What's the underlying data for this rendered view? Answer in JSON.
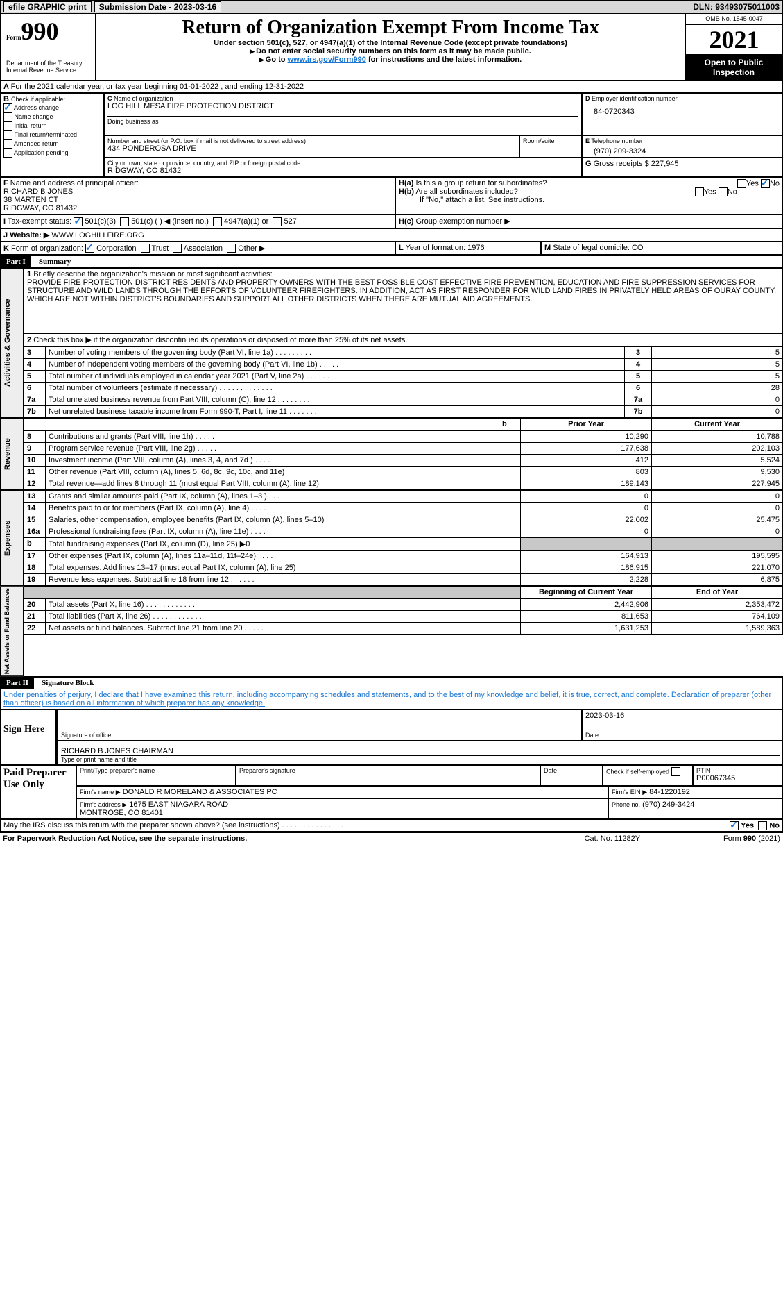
{
  "topbar": {
    "efile": "efile GRAPHIC print",
    "submission_label": "Submission Date - ",
    "submission_date": "2023-03-16",
    "dln_label": "DLN: ",
    "dln": "93493075011003"
  },
  "header": {
    "form_label": "Form",
    "form_num": "990",
    "title": "Return of Organization Exempt From Income Tax",
    "subtitle": "Under section 501(c), 527, or 4947(a)(1) of the Internal Revenue Code (except private foundations)",
    "note1": "Do not enter social security numbers on this form as it may be made public.",
    "note2_pre": "Go to ",
    "note2_link": "www.irs.gov/Form990",
    "note2_post": " for instructions and the latest information.",
    "dept": "Department of the Treasury\nInternal Revenue Service",
    "omb": "OMB No. 1545-0047",
    "year": "2021",
    "public": "Open to Public Inspection"
  },
  "sectionA": {
    "line": "For the 2021 calendar year, or tax year beginning 01-01-2022    , and ending 12-31-2022"
  },
  "sectionB": {
    "label": "Check if applicable:",
    "items": [
      {
        "label": "Address change",
        "checked": true
      },
      {
        "label": "Name change",
        "checked": false
      },
      {
        "label": "Initial return",
        "checked": false
      },
      {
        "label": "Final return/terminated",
        "checked": false
      },
      {
        "label": "Amended return",
        "checked": false
      },
      {
        "label": "Application pending",
        "checked": false
      }
    ]
  },
  "sectionC": {
    "name_label": "Name of organization",
    "name": "LOG HILL MESA FIRE PROTECTION DISTRICT",
    "dba_label": "Doing business as",
    "street_label": "Number and street (or P.O. box if mail is not delivered to street address)",
    "street": "434 PONDEROSA DRIVE",
    "room_label": "Room/suite",
    "city_label": "City or town, state or province, country, and ZIP or foreign postal code",
    "city": "RIDGWAY, CO  81432"
  },
  "sectionD": {
    "label": "Employer identification number",
    "val": "84-0720343"
  },
  "sectionE": {
    "label": "Telephone number",
    "val": "(970) 209-3324"
  },
  "sectionG": {
    "label": "Gross receipts $",
    "val": "227,945"
  },
  "sectionF": {
    "label": "Name and address of principal officer:",
    "name": "RICHARD B JONES",
    "addr1": "38 MARTEN CT",
    "addr2": "RIDGWAY, CO  81432"
  },
  "sectionH": {
    "a": "Is this a group return for subordinates?",
    "b": "Are all subordinates included?",
    "b_note": "If \"No,\" attach a list. See instructions.",
    "c": "Group exemption number ▶",
    "yes": "Yes",
    "no": "No"
  },
  "sectionI": {
    "label": "Tax-exempt status:",
    "opts": [
      "501(c)(3)",
      "501(c) (  ) ◀ (insert no.)",
      "4947(a)(1) or",
      "527"
    ]
  },
  "sectionJ": {
    "label": "Website: ▶",
    "val": "WWW.LOGHILLFIRE.ORG"
  },
  "sectionK": {
    "label": "Form of organization:",
    "opts": [
      "Corporation",
      "Trust",
      "Association",
      "Other ▶"
    ]
  },
  "sectionL": {
    "label": "Year of formation:",
    "val": "1976"
  },
  "sectionM": {
    "label": "State of legal domicile:",
    "val": "CO"
  },
  "partI": {
    "header": "Part I",
    "title": "Summary",
    "side1": "Activities & Governance",
    "side2": "Revenue",
    "side3": "Expenses",
    "side4": "Net Assets or Fund Balances",
    "q1": "Briefly describe the organization's mission or most significant activities:",
    "mission": "PROVIDE FIRE PROTECTION DISTRICT RESIDENTS AND PROPERTY OWNERS WITH THE BEST POSSIBLE COST EFFECTIVE FIRE PREVENTION, EDUCATION AND FIRE SUPPRESSION SERVICES FOR STRUCTURE AND WILD LANDS THROUGH THE EFFORTS OF VOLUNTEER FIREFIGHTERS. IN ADDITION, ACT AS FIRST RESPONDER FOR WILD LAND FIRES IN PRIVATELY HELD AREAS OF OURAY COUNTY, WHICH ARE NOT WITHIN DISTRICT'S BOUNDARIES AND SUPPORT ALL OTHER DISTRICTS WHEN THERE ARE MUTUAL AID AGREEMENTS.",
    "q2": "Check this box ▶         if the organization discontinued its operations or disposed of more than 25% of its net assets.",
    "rows_top": [
      {
        "n": "3",
        "label": "Number of voting members of the governing body (Part VI, line 1a)   .   .   .   .   .   .   .   .   .",
        "val": "5"
      },
      {
        "n": "4",
        "label": "Number of independent voting members of the governing body (Part VI, line 1b)   .   .   .   .   .",
        "val": "5"
      },
      {
        "n": "5",
        "label": "Total number of individuals employed in calendar year 2021 (Part V, line 2a)   .   .   .   .   .   .",
        "val": "5"
      },
      {
        "n": "6",
        "label": "Total number of volunteers (estimate if necessary)   .   .   .   .   .   .   .   .   .   .   .   .   .",
        "val": "28"
      },
      {
        "n": "7a",
        "label": "Total unrelated business revenue from Part VIII, column (C), line 12   .   .   .   .   .   .   .   .",
        "val": "0"
      },
      {
        "n": "7b",
        "label": "Net unrelated business taxable income from Form 990-T, Part I, line 11   .   .   .   .   .   .   .",
        "val": "0"
      }
    ],
    "col_prior": "Prior Year",
    "col_current": "Current Year",
    "rows_rev": [
      {
        "n": "8",
        "label": "Contributions and grants (Part VIII, line 1h)   .   .   .   .   .",
        "p": "10,290",
        "c": "10,788"
      },
      {
        "n": "9",
        "label": "Program service revenue (Part VIII, line 2g)   .   .   .   .   .",
        "p": "177,638",
        "c": "202,103"
      },
      {
        "n": "10",
        "label": "Investment income (Part VIII, column (A), lines 3, 4, and 7d )   .   .   .   .",
        "p": "412",
        "c": "5,524"
      },
      {
        "n": "11",
        "label": "Other revenue (Part VIII, column (A), lines 5, 6d, 8c, 9c, 10c, and 11e)",
        "p": "803",
        "c": "9,530"
      },
      {
        "n": "12",
        "label": "Total revenue—add lines 8 through 11 (must equal Part VIII, column (A), line 12)",
        "p": "189,143",
        "c": "227,945"
      }
    ],
    "rows_exp": [
      {
        "n": "13",
        "label": "Grants and similar amounts paid (Part IX, column (A), lines 1–3 )   .   .   .",
        "p": "0",
        "c": "0"
      },
      {
        "n": "14",
        "label": "Benefits paid to or for members (Part IX, column (A), line 4)   .   .   .   .",
        "p": "0",
        "c": "0"
      },
      {
        "n": "15",
        "label": "Salaries, other compensation, employee benefits (Part IX, column (A), lines 5–10)",
        "p": "22,002",
        "c": "25,475"
      },
      {
        "n": "16a",
        "label": "Professional fundraising fees (Part IX, column (A), line 11e)   .   .   .   .",
        "p": "0",
        "c": "0"
      },
      {
        "n": "b",
        "label": "Total fundraising expenses (Part IX, column (D), line 25) ▶0",
        "p": "",
        "c": "",
        "grey": true
      },
      {
        "n": "17",
        "label": "Other expenses (Part IX, column (A), lines 11a–11d, 11f–24e)   .   .   .   .",
        "p": "164,913",
        "c": "195,595"
      },
      {
        "n": "18",
        "label": "Total expenses. Add lines 13–17 (must equal Part IX, column (A), line 25)",
        "p": "186,915",
        "c": "221,070"
      },
      {
        "n": "19",
        "label": "Revenue less expenses. Subtract line 18 from line 12   .   .   .   .   .   .",
        "p": "2,228",
        "c": "6,875"
      }
    ],
    "col_begin": "Beginning of Current Year",
    "col_end": "End of Year",
    "rows_net": [
      {
        "n": "20",
        "label": "Total assets (Part X, line 16)   .   .   .   .   .   .   .   .   .   .   .   .   .",
        "p": "2,442,906",
        "c": "2,353,472"
      },
      {
        "n": "21",
        "label": "Total liabilities (Part X, line 26)   .   .   .   .   .   .   .   .   .   .   .   .",
        "p": "811,653",
        "c": "764,109"
      },
      {
        "n": "22",
        "label": "Net assets or fund balances. Subtract line 21 from line 20   .   .   .   .   .",
        "p": "1,631,253",
        "c": "1,589,363"
      }
    ]
  },
  "partII": {
    "header": "Part II",
    "title": "Signature Block",
    "decl": "Under penalties of perjury, I declare that I have examined this return, including accompanying schedules and statements, and to the best of my knowledge and belief, it is true, correct, and complete. Declaration of preparer (other than officer) is based on all information of which preparer has any knowledge.",
    "sign_here": "Sign Here",
    "sig_label": "Signature of officer",
    "date_label": "Date",
    "date": "2023-03-16",
    "name": "RICHARD B JONES CHAIRMAN",
    "name_label": "Type or print name and title",
    "paid": "Paid Preparer Use Only",
    "prep_name_label": "Print/Type preparer's name",
    "prep_sig_label": "Preparer's signature",
    "check_self": "Check           if self-employed",
    "ptin_label": "PTIN",
    "ptin": "P00067345",
    "firm_name_label": "Firm's name    ▶",
    "firm_name": "DONALD R MORELAND & ASSOCIATES PC",
    "firm_ein_label": "Firm's EIN ▶",
    "firm_ein": "84-1220192",
    "firm_addr_label": "Firm's address ▶",
    "firm_addr": "1675 EAST NIAGARA ROAD\nMONTROSE, CO  81401",
    "phone_label": "Phone no.",
    "phone": "(970) 249-3424",
    "discuss": "May the IRS discuss this return with the preparer shown above? (see instructions)   .   .   .   .   .   .   .   .   .   .   .   .   .   .   .",
    "yes": "Yes",
    "no": "No"
  },
  "footer": {
    "left": "For Paperwork Reduction Act Notice, see the separate instructions.",
    "mid": "Cat. No. 11282Y",
    "right": "Form 990 (2021)"
  }
}
